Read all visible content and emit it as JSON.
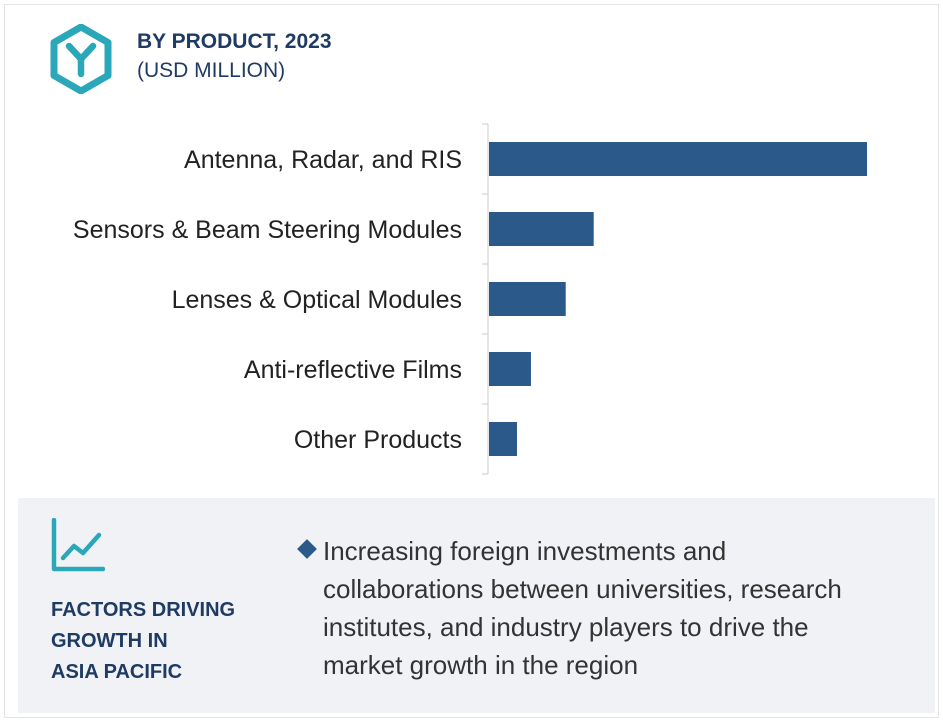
{
  "header": {
    "title": "BY PRODUCT, 2023",
    "subtitle": "(USD MILLION)",
    "logo_icon": "hexagon-y-logo-icon",
    "accent_color": "#2aa7b8"
  },
  "chart_data": {
    "type": "bar",
    "orientation": "horizontal",
    "title": "BY PRODUCT, 2023",
    "subtitle": "(USD MILLION)",
    "categories": [
      "Antenna, Radar, and RIS",
      "Sensors & Beam Steering Modules",
      "Lenses & Optical Modules",
      "Anti-reflective Films",
      "Other Products"
    ],
    "values": [
      100,
      27.7,
      20.3,
      11.1,
      7.4
    ],
    "xlim": [
      0,
      100
    ],
    "bar_color": "#2b5a8a",
    "grid": false,
    "legend": "none"
  },
  "factors": {
    "icon": "line-chart-icon",
    "heading_lines": [
      "FACTORS DRIVING",
      "GROWTH IN",
      "ASIA PACIFIC"
    ],
    "text_lines": [
      "Increasing foreign investments and",
      "collaborations between universities, research",
      "institutes, and industry players to drive the",
      "market growth in the region"
    ]
  }
}
